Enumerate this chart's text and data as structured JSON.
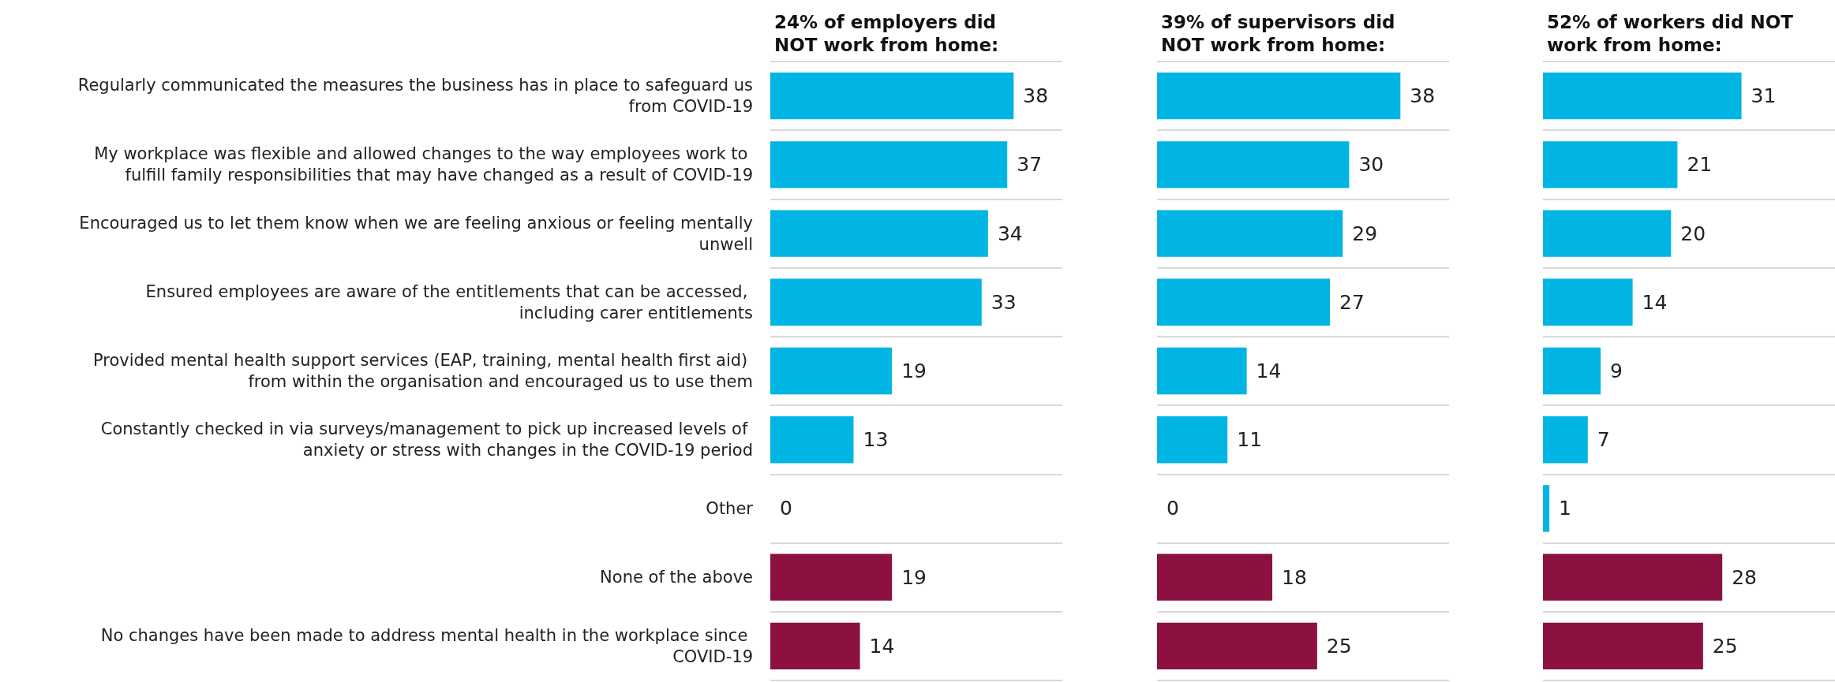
{
  "chart_data": [
    {
      "type": "bar",
      "orientation": "horizontal",
      "title": "24% of employers did NOT work from home:",
      "data_labels": true,
      "grid": "y",
      "tick_labels": "y",
      "categories": [
        "Regularly communicated the measures the business has in place to safeguard us from COVID-19",
        "My workplace was flexible and allowed changes to the way employees work to fulfill family responsibilities that may have changed as a result of COVID-19",
        "Encouraged us to let them know when we are feeling anxious or feeling mentally unwell",
        "Ensured employees are aware of the entitlements that can be accessed, including carer entitlements",
        "Provided mental health support services (EAP, training, mental health first aid) from within the organisation and encouraged us to use them",
        "Constantly checked in via surveys/management to pick up increased levels of anxiety or stress with changes in the COVID-19 period",
        "Other",
        "None of the above",
        "No changes have been made to address mental health in the workplace since COVID-19"
      ],
      "values": [
        38,
        37,
        34,
        33,
        19,
        13,
        0,
        19,
        14
      ],
      "colors": [
        "#00b4e3",
        "#00b4e3",
        "#00b4e3",
        "#00b4e3",
        "#00b4e3",
        "#00b4e3",
        "#00b4e3",
        "#8c1140",
        "#8c1140"
      ]
    },
    {
      "type": "bar",
      "orientation": "horizontal",
      "title": "39% of supervisors did NOT work from home:",
      "data_labels": true,
      "grid": "y",
      "tick_labels": false,
      "categories": [
        null,
        null,
        null,
        null,
        null,
        null,
        null,
        null,
        null
      ],
      "values": [
        38,
        30,
        29,
        27,
        14,
        11,
        0,
        18,
        25
      ],
      "colors": [
        "#00b4e3",
        "#00b4e3",
        "#00b4e3",
        "#00b4e3",
        "#00b4e3",
        "#00b4e3",
        "#00b4e3",
        "#8c1140",
        "#8c1140"
      ]
    },
    {
      "type": "bar",
      "orientation": "horizontal",
      "title": "52% of workers did NOT work from home:",
      "data_labels": true,
      "grid": "y",
      "tick_labels": false,
      "categories": [
        null,
        null,
        null,
        null,
        null,
        null,
        null,
        null,
        null
      ],
      "values": [
        31,
        21,
        20,
        14,
        9,
        7,
        1,
        28,
        25
      ],
      "colors": [
        "#00b4e3",
        "#00b4e3",
        "#00b4e3",
        "#00b4e3",
        "#00b4e3",
        "#00b4e3",
        "#00b4e3",
        "#8c1140",
        "#8c1140"
      ]
    }
  ]
}
